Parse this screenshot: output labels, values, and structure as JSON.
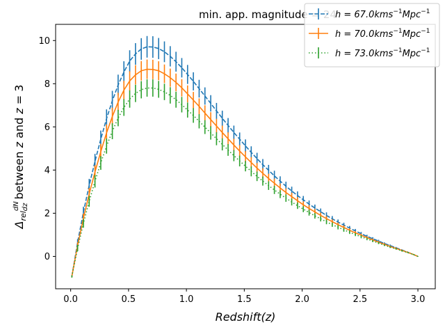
{
  "chart_data": {
    "type": "line",
    "title": "min. app. magnitude = 24",
    "xlabel": "Redshift(z)",
    "ylabel": "Δrel dN/dz between z and z = 3",
    "xlim": [
      -0.13,
      3.15
    ],
    "ylim": [
      -1.5,
      10.75
    ],
    "xticks": [
      0.0,
      0.5,
      1.0,
      1.5,
      2.0,
      2.5,
      3.0
    ],
    "yticks": [
      0,
      2,
      4,
      6,
      8,
      10
    ],
    "grid": false,
    "legend_position": "top-right",
    "x": [
      0.01,
      0.06,
      0.11,
      0.16,
      0.21,
      0.26,
      0.31,
      0.36,
      0.41,
      0.46,
      0.51,
      0.56,
      0.61,
      0.66,
      0.71,
      0.76,
      0.81,
      0.86,
      0.91,
      0.96,
      1.01,
      1.06,
      1.11,
      1.16,
      1.21,
      1.26,
      1.31,
      1.36,
      1.41,
      1.46,
      1.51,
      1.56,
      1.61,
      1.66,
      1.71,
      1.76,
      1.81,
      1.86,
      1.91,
      1.96,
      2.01,
      2.06,
      2.11,
      2.16,
      2.21,
      2.26,
      2.31,
      2.36,
      2.41,
      2.46,
      2.51,
      2.56,
      2.61,
      2.66,
      2.71,
      2.76,
      2.81,
      2.86,
      2.91,
      2.96,
      3.0
    ],
    "series": [
      {
        "name": "h = 67.0 kms⁻¹Mpc⁻¹",
        "label_main": "h = 67.0kms",
        "label_sup1": "−1",
        "label_mid": "Mpc",
        "label_sup2": "−1",
        "color": "#1f77b4",
        "dash": "6,2.5",
        "values": [
          -0.93,
          0.65,
          2.05,
          3.29,
          4.4,
          5.43,
          6.38,
          7.21,
          7.94,
          8.54,
          9.05,
          9.38,
          9.61,
          9.71,
          9.7,
          9.63,
          9.48,
          9.27,
          9.02,
          8.74,
          8.43,
          8.11,
          7.77,
          7.43,
          7.09,
          6.74,
          6.4,
          6.07,
          5.74,
          5.43,
          5.12,
          4.82,
          4.53,
          4.25,
          3.99,
          3.73,
          3.49,
          3.25,
          3.03,
          2.82,
          2.62,
          2.42,
          2.24,
          2.07,
          1.9,
          1.74,
          1.59,
          1.45,
          1.31,
          1.18,
          1.05,
          0.93,
          0.82,
          0.71,
          0.6,
          0.5,
          0.4,
          0.3,
          0.2,
          0.09,
          0.0
        ],
        "errors": [
          0.05,
          0.15,
          0.25,
          0.3,
          0.35,
          0.4,
          0.43,
          0.46,
          0.48,
          0.5,
          0.5,
          0.5,
          0.5,
          0.5,
          0.5,
          0.49,
          0.48,
          0.47,
          0.46,
          0.45,
          0.44,
          0.42,
          0.41,
          0.4,
          0.38,
          0.37,
          0.35,
          0.34,
          0.32,
          0.31,
          0.3,
          0.28,
          0.27,
          0.26,
          0.25,
          0.24,
          0.22,
          0.21,
          0.2,
          0.19,
          0.18,
          0.17,
          0.16,
          0.15,
          0.14,
          0.13,
          0.12,
          0.11,
          0.1,
          0.09,
          0.08,
          0.07,
          0.07,
          0.06,
          0.05,
          0.05,
          0.04,
          0.03,
          0.03,
          0.02,
          0.01
        ]
      },
      {
        "name": "h = 70.0 kms⁻¹Mpc⁻¹",
        "label_main": "h = 70.0kms",
        "label_sup1": "−1",
        "label_mid": "Mpc",
        "label_sup2": "−1",
        "color": "#ff7f0e",
        "dash": "",
        "values": [
          -0.93,
          0.5,
          1.76,
          2.89,
          3.91,
          4.85,
          5.72,
          6.48,
          7.15,
          7.7,
          8.13,
          8.41,
          8.6,
          8.67,
          8.66,
          8.6,
          8.46,
          8.28,
          8.06,
          7.81,
          7.53,
          7.24,
          6.95,
          6.64,
          6.34,
          6.04,
          5.74,
          5.45,
          5.16,
          4.88,
          4.61,
          4.35,
          4.09,
          3.85,
          3.61,
          3.39,
          3.17,
          2.96,
          2.77,
          2.58,
          2.39,
          2.22,
          2.06,
          1.9,
          1.75,
          1.61,
          1.47,
          1.34,
          1.21,
          1.09,
          0.98,
          0.87,
          0.76,
          0.66,
          0.56,
          0.46,
          0.37,
          0.28,
          0.19,
          0.09,
          0.0
        ],
        "errors": [
          0.05,
          0.15,
          0.22,
          0.28,
          0.32,
          0.36,
          0.39,
          0.41,
          0.43,
          0.44,
          0.45,
          0.45,
          0.45,
          0.45,
          0.45,
          0.44,
          0.43,
          0.42,
          0.41,
          0.4,
          0.39,
          0.38,
          0.37,
          0.36,
          0.34,
          0.33,
          0.32,
          0.3,
          0.29,
          0.28,
          0.27,
          0.25,
          0.24,
          0.23,
          0.22,
          0.21,
          0.2,
          0.19,
          0.18,
          0.17,
          0.16,
          0.15,
          0.14,
          0.13,
          0.12,
          0.11,
          0.1,
          0.1,
          0.09,
          0.08,
          0.07,
          0.06,
          0.06,
          0.05,
          0.05,
          0.04,
          0.04,
          0.03,
          0.03,
          0.02,
          0.01
        ]
      },
      {
        "name": "h = 73.0 kms⁻¹Mpc⁻¹",
        "label_main": "h = 73.0kms",
        "label_sup1": "−1",
        "label_mid": "Mpc",
        "label_sup2": "−1",
        "color": "#2ca02c",
        "dash": "1.5,3",
        "values": [
          -0.93,
          0.38,
          1.53,
          2.55,
          3.48,
          4.33,
          5.11,
          5.8,
          6.41,
          6.9,
          7.29,
          7.55,
          7.72,
          7.8,
          7.8,
          7.74,
          7.62,
          7.46,
          7.26,
          7.03,
          6.78,
          6.53,
          6.26,
          5.99,
          5.72,
          5.45,
          5.19,
          4.93,
          4.67,
          4.42,
          4.18,
          3.94,
          3.71,
          3.49,
          3.28,
          3.08,
          2.88,
          2.7,
          2.52,
          2.35,
          2.19,
          2.03,
          1.88,
          1.74,
          1.6,
          1.47,
          1.35,
          1.23,
          1.12,
          1.01,
          0.91,
          0.81,
          0.71,
          0.62,
          0.52,
          0.43,
          0.35,
          0.26,
          0.18,
          0.09,
          0.0
        ],
        "errors": [
          0.05,
          0.14,
          0.2,
          0.25,
          0.29,
          0.32,
          0.35,
          0.37,
          0.38,
          0.39,
          0.4,
          0.4,
          0.4,
          0.4,
          0.4,
          0.39,
          0.38,
          0.38,
          0.37,
          0.36,
          0.35,
          0.34,
          0.33,
          0.32,
          0.31,
          0.3,
          0.28,
          0.27,
          0.26,
          0.25,
          0.24,
          0.23,
          0.22,
          0.21,
          0.2,
          0.19,
          0.18,
          0.17,
          0.16,
          0.15,
          0.14,
          0.14,
          0.13,
          0.12,
          0.11,
          0.1,
          0.1,
          0.09,
          0.08,
          0.07,
          0.07,
          0.06,
          0.05,
          0.05,
          0.04,
          0.04,
          0.03,
          0.03,
          0.02,
          0.02,
          0.01
        ]
      }
    ]
  }
}
